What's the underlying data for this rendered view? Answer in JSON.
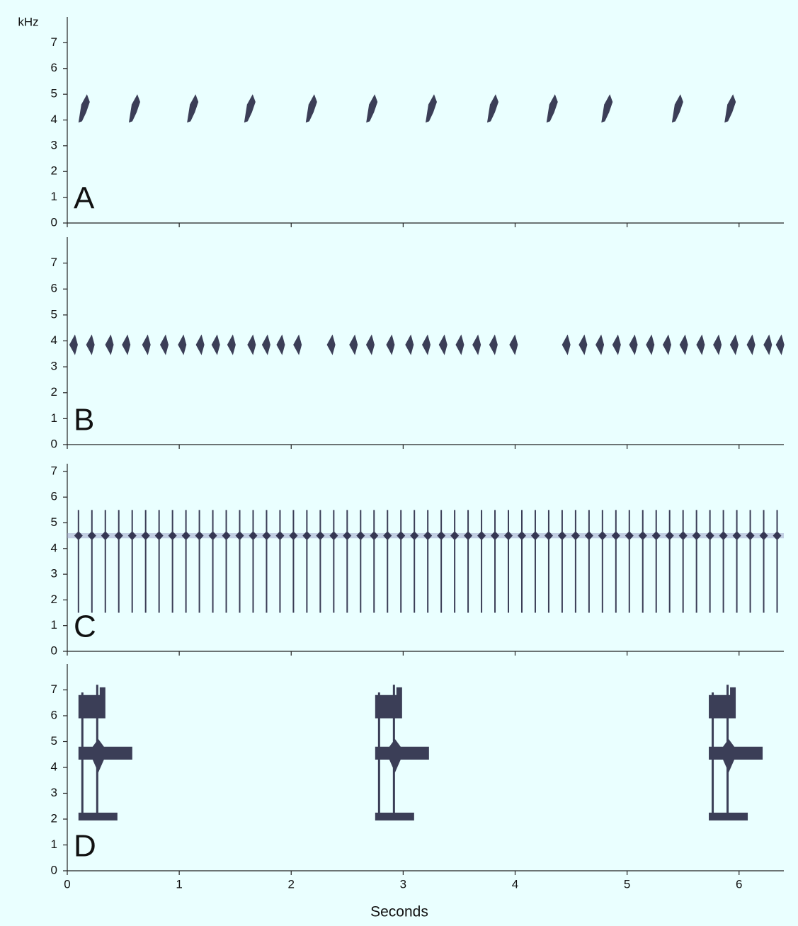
{
  "chart_data": [
    {
      "type": "spectrogram",
      "label": "A",
      "ylabel": "kHz",
      "color": "#1c1c3a",
      "xlim": [
        0,
        6.4
      ],
      "xticks": [
        0,
        1,
        2,
        3,
        4,
        5,
        6
      ],
      "ylim": [
        0,
        8
      ],
      "yticks": [
        0,
        1,
        2,
        3,
        4,
        5,
        6,
        7
      ],
      "x": [
        0.1,
        0.55,
        1.07,
        1.58,
        2.13,
        2.67,
        3.2,
        3.75,
        4.28,
        4.77,
        5.4,
        5.87
      ],
      "values": [
        4.4,
        4.4,
        4.4,
        4.4,
        4.4,
        4.4,
        4.4,
        4.4,
        4.4,
        4.4,
        4.4,
        4.4
      ]
    },
    {
      "type": "spectrogram",
      "label": "B",
      "color": "#1c1c3a",
      "xlim": [
        0,
        6.4
      ],
      "xticks": [
        0,
        1,
        2,
        3,
        4,
        5,
        6
      ],
      "ylim": [
        0,
        8
      ],
      "yticks": [
        0,
        1,
        2,
        3,
        4,
        5,
        6,
        7
      ],
      "x": [
        0.05,
        0.2,
        0.37,
        0.52,
        0.7,
        0.86,
        1.02,
        1.18,
        1.32,
        1.46,
        1.64,
        1.77,
        1.9,
        2.05,
        2.35,
        2.55,
        2.7,
        2.88,
        3.05,
        3.2,
        3.35,
        3.5,
        3.65,
        3.8,
        3.98,
        4.45,
        4.6,
        4.75,
        4.9,
        5.05,
        5.2,
        5.35,
        5.5,
        5.65,
        5.8,
        5.95,
        6.1,
        6.25,
        6.36
      ],
      "values": [
        3.85,
        3.85,
        3.85,
        3.85,
        3.85,
        3.85,
        3.85,
        3.85,
        3.85,
        3.85,
        3.85,
        3.85,
        3.85,
        3.85,
        3.85,
        3.85,
        3.85,
        3.85,
        3.85,
        3.85,
        3.85,
        3.85,
        3.85,
        3.85,
        3.85,
        3.85,
        3.85,
        3.85,
        3.85,
        3.85,
        3.85,
        3.85,
        3.85,
        3.85,
        3.85,
        3.85,
        3.85,
        3.85,
        3.85
      ]
    },
    {
      "type": "spectrogram",
      "label": "C",
      "color": "#1c1c3a",
      "xlim": [
        0,
        6.4
      ],
      "xticks": [
        0,
        1,
        2,
        3,
        4,
        5,
        6
      ],
      "ylim": [
        0,
        7.3
      ],
      "yticks": [
        0,
        1,
        2,
        3,
        4,
        5,
        6,
        7
      ],
      "x": [
        0.1,
        0.22,
        0.34,
        0.46,
        0.58,
        0.7,
        0.82,
        0.94,
        1.06,
        1.18,
        1.3,
        1.42,
        1.54,
        1.66,
        1.78,
        1.9,
        2.02,
        2.14,
        2.26,
        2.38,
        2.5,
        2.62,
        2.74,
        2.86,
        2.98,
        3.1,
        3.22,
        3.34,
        3.46,
        3.58,
        3.7,
        3.82,
        3.94,
        4.06,
        4.18,
        4.3,
        4.42,
        4.54,
        4.66,
        4.78,
        4.9,
        5.02,
        5.14,
        5.26,
        5.38,
        5.5,
        5.62,
        5.74,
        5.86,
        5.98,
        6.1,
        6.22,
        6.34
      ],
      "values": [
        4.5,
        4.5,
        4.5,
        4.5,
        4.5,
        4.5,
        4.5,
        4.5,
        4.5,
        4.5,
        4.5,
        4.5,
        4.5,
        4.5,
        4.5,
        4.5,
        4.5,
        4.5,
        4.5,
        4.5,
        4.5,
        4.5,
        4.5,
        4.5,
        4.5,
        4.5,
        4.5,
        4.5,
        4.5,
        4.5,
        4.5,
        4.5,
        4.5,
        4.5,
        4.5,
        4.5,
        4.5,
        4.5,
        4.5,
        4.5,
        4.5,
        4.5,
        4.5,
        4.5,
        4.5,
        4.5,
        4.5,
        4.5,
        4.5,
        4.5,
        4.5,
        4.5,
        4.5
      ]
    },
    {
      "type": "spectrogram",
      "label": "D",
      "xlabel": "Seconds",
      "color": "#1c1c3a",
      "xlim": [
        0,
        6.4
      ],
      "xticks": [
        0,
        1,
        2,
        3,
        4,
        5,
        6
      ],
      "ylim": [
        0,
        8
      ],
      "yticks": [
        0,
        1,
        2,
        3,
        4,
        5,
        6,
        7
      ],
      "x": [
        0.1,
        2.75,
        5.73
      ],
      "values": [
        4.3,
        4.3,
        4.3
      ]
    }
  ]
}
